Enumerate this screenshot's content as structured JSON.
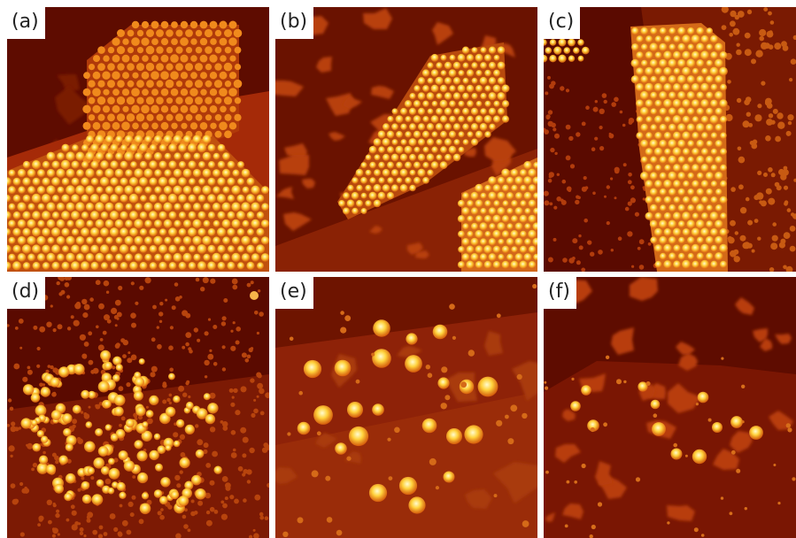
{
  "figure": {
    "panels": [
      {
        "id": "a",
        "label": "(a)",
        "colors": {
          "bg": "#5e0c00",
          "mid": "#a52a08",
          "hi": "#ffd642"
        }
      },
      {
        "id": "b",
        "label": "(b)",
        "colors": {
          "bg": "#6a1200",
          "mid": "#b8400e",
          "hi": "#ffd642"
        }
      },
      {
        "id": "c",
        "label": "(c)",
        "colors": {
          "bg": "#7a1a02",
          "mid": "#c0520f",
          "hi": "#ffe35a"
        }
      },
      {
        "id": "d",
        "label": "(d)",
        "colors": {
          "bg": "#5a0a00",
          "mid": "#b1390a",
          "hi": "#ffe666"
        }
      },
      {
        "id": "e",
        "label": "(e)",
        "colors": {
          "bg": "#8e2208",
          "mid": "#c85012",
          "hi": "#fff06a"
        }
      },
      {
        "id": "f",
        "label": "(f)",
        "colors": {
          "bg": "#7a1603",
          "mid": "#b83e0c",
          "hi": "#ffea5e"
        }
      }
    ]
  }
}
